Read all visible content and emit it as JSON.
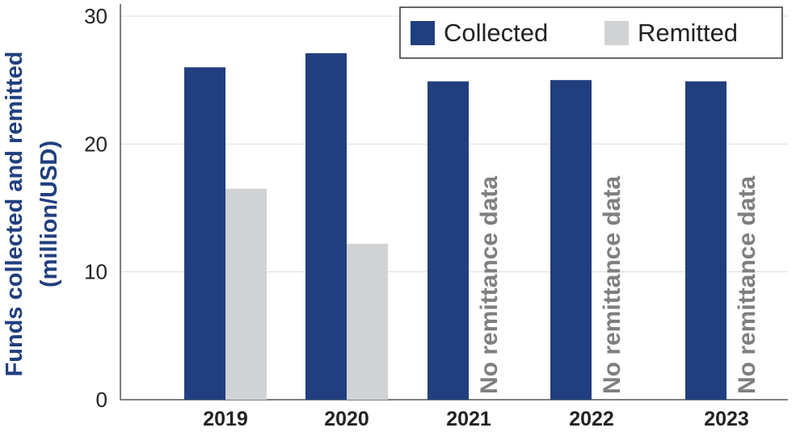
{
  "chart_data": {
    "type": "bar",
    "title": "",
    "xlabel": "",
    "ylabel_lines": [
      "Funds collected and remitted",
      "(million/USD)"
    ],
    "ylim": [
      0,
      30
    ],
    "yticks": [
      0,
      10,
      20,
      30
    ],
    "grid": true,
    "legend_position": "top-right",
    "categories": [
      "2019",
      "2020",
      "2021",
      "2022",
      "2023"
    ],
    "series": [
      {
        "name": "Collected",
        "color": "#213f7e",
        "values": [
          26,
          27.1,
          24.9,
          25,
          24.9
        ]
      },
      {
        "name": "Remitted",
        "color": "#d0d2d3",
        "values": [
          16.5,
          12.2,
          null,
          null,
          null
        ]
      }
    ],
    "annotations": [
      {
        "category": "2021",
        "text": "No remittance data"
      },
      {
        "category": "2022",
        "text": "No remittance data"
      },
      {
        "category": "2023",
        "text": "No remittance data"
      }
    ],
    "colors": {
      "axis_label": "#213f7e",
      "annotation": "#7f7f7f",
      "grid": "#dcdcdc"
    }
  }
}
